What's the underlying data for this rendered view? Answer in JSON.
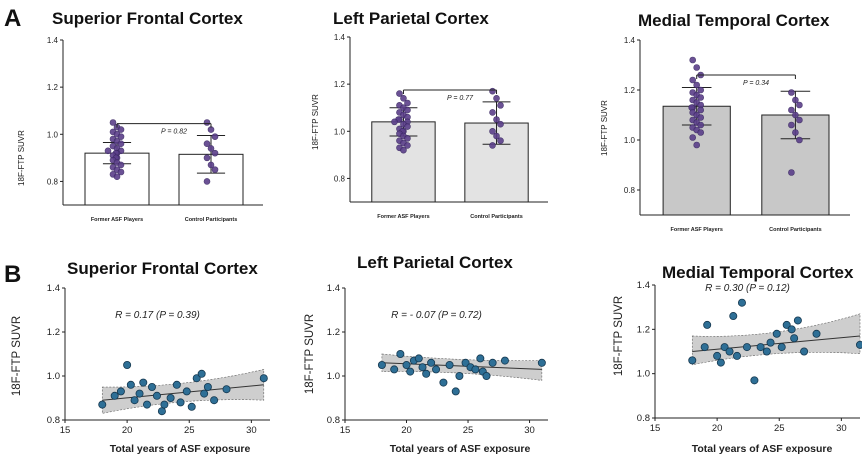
{
  "panel_labels": {
    "a": "A",
    "b": "B"
  },
  "chart_data": [
    {
      "type": "bar",
      "panel": "A",
      "title": "Superior Frontal Cortex",
      "ylabel": "18F-FTP SUVR",
      "ylim": [
        0.7,
        1.4
      ],
      "yticks": [
        "0.8",
        "1.0",
        "1.2",
        "1.4"
      ],
      "categories": [
        "Former ASF Players",
        "Control Participants"
      ],
      "values": [
        0.92,
        0.915
      ],
      "sd": [
        0.045,
        0.08
      ],
      "fill": [
        "#ffffff",
        "#ffffff"
      ],
      "annotation": "P = 0.82",
      "points": [
        [
          1.05,
          1.03,
          1.02,
          1.01,
          1.0,
          0.99,
          0.98,
          0.97,
          0.96,
          0.95,
          0.94,
          0.93,
          0.93,
          0.92,
          0.92,
          0.91,
          0.9,
          0.9,
          0.89,
          0.88,
          0.87,
          0.86,
          0.85,
          0.84,
          0.83,
          0.82
        ],
        [
          1.05,
          1.02,
          0.99,
          0.96,
          0.94,
          0.92,
          0.9,
          0.87,
          0.85,
          0.8
        ]
      ]
    },
    {
      "type": "bar",
      "panel": "A",
      "title": "Left Parietal Cortex",
      "ylabel": "18F-FTP SUVR",
      "ylim": [
        0.7,
        1.4
      ],
      "yticks": [
        "0.8",
        "1.0",
        "1.2",
        "1.4"
      ],
      "categories": [
        "Former ASF Players",
        "Control Participants"
      ],
      "values": [
        1.04,
        1.035
      ],
      "sd": [
        0.06,
        0.09
      ],
      "fill": [
        "#e3e3e3",
        "#e3e3e3"
      ],
      "annotation": "P = 0.77",
      "points": [
        [
          1.16,
          1.14,
          1.12,
          1.11,
          1.1,
          1.09,
          1.08,
          1.07,
          1.06,
          1.05,
          1.05,
          1.04,
          1.04,
          1.03,
          1.02,
          1.01,
          1.0,
          1.0,
          0.99,
          0.98,
          0.97,
          0.96,
          0.95,
          0.94,
          0.93,
          0.92
        ],
        [
          1.17,
          1.14,
          1.11,
          1.08,
          1.05,
          1.03,
          1.0,
          0.98,
          0.96,
          0.94
        ]
      ]
    },
    {
      "type": "bar",
      "panel": "A",
      "title": "Medial Temporal Cortex",
      "ylabel": "18F-FTP SUVR",
      "ylim": [
        0.7,
        1.4
      ],
      "yticks": [
        "0.8",
        "1.0",
        "1.2",
        "1.4"
      ],
      "categories": [
        "Former ASF Players",
        "Control Participants"
      ],
      "values": [
        1.135,
        1.1
      ],
      "sd": [
        0.075,
        0.095
      ],
      "fill": [
        "#c8c8c8",
        "#c8c8c8"
      ],
      "annotation": "P = 0.34",
      "points": [
        [
          1.32,
          1.29,
          1.26,
          1.24,
          1.22,
          1.2,
          1.19,
          1.18,
          1.17,
          1.16,
          1.15,
          1.14,
          1.13,
          1.13,
          1.12,
          1.11,
          1.1,
          1.09,
          1.08,
          1.07,
          1.06,
          1.05,
          1.04,
          1.03,
          1.01,
          0.98
        ],
        [
          1.19,
          1.16,
          1.14,
          1.12,
          1.1,
          1.08,
          1.06,
          1.03,
          1.0,
          0.87
        ]
      ]
    },
    {
      "type": "scatter",
      "panel": "B",
      "title": "Superior Frontal Cortex",
      "xlabel": "Total years of ASF exposure",
      "ylabel": "18F-FTP SUVR",
      "xlim": [
        15,
        31.5
      ],
      "ylim": [
        0.8,
        1.4
      ],
      "xticks": [
        "15",
        "20",
        "25",
        "30"
      ],
      "yticks": [
        "0.8",
        "1.0",
        "1.2",
        "1.4"
      ],
      "annotation": "R = 0.17 (P = 0.39)",
      "fit": {
        "x": [
          18,
          31
        ],
        "y": [
          0.89,
          0.96
        ]
      },
      "band": {
        "upper": [
          0.95,
          1.03
        ],
        "lower": [
          0.83,
          0.89
        ]
      },
      "points": [
        [
          18,
          0.87
        ],
        [
          19,
          0.91
        ],
        [
          19.5,
          0.93
        ],
        [
          20,
          1.05
        ],
        [
          20.3,
          0.96
        ],
        [
          20.6,
          0.89
        ],
        [
          21,
          0.92
        ],
        [
          21.3,
          0.97
        ],
        [
          21.6,
          0.87
        ],
        [
          22,
          0.95
        ],
        [
          22.4,
          0.91
        ],
        [
          22.8,
          0.84
        ],
        [
          23,
          0.87
        ],
        [
          23.5,
          0.9
        ],
        [
          24,
          0.96
        ],
        [
          24.3,
          0.88
        ],
        [
          24.8,
          0.93
        ],
        [
          25.2,
          0.86
        ],
        [
          25.6,
          0.99
        ],
        [
          26,
          1.01
        ],
        [
          26.2,
          0.92
        ],
        [
          26.5,
          0.95
        ],
        [
          27,
          0.89
        ],
        [
          28,
          0.94
        ],
        [
          31,
          0.99
        ]
      ]
    },
    {
      "type": "scatter",
      "panel": "B",
      "title": "Left Parietal Cortex",
      "xlabel": "Total years of ASF exposure",
      "ylabel": "18F-FTP SUVR",
      "xlim": [
        15,
        31.5
      ],
      "ylim": [
        0.8,
        1.4
      ],
      "xticks": [
        "15",
        "20",
        "25",
        "30"
      ],
      "yticks": [
        "0.8",
        "1.0",
        "1.2",
        "1.4"
      ],
      "annotation": "R = - 0.07 (P = 0.72)",
      "fit": {
        "x": [
          18,
          31
        ],
        "y": [
          1.06,
          1.03
        ]
      },
      "band": {
        "upper": [
          1.1,
          1.07
        ],
        "lower": [
          1.02,
          0.98
        ]
      },
      "points": [
        [
          18,
          1.05
        ],
        [
          19,
          1.03
        ],
        [
          19.5,
          1.1
        ],
        [
          20,
          1.05
        ],
        [
          20.3,
          1.02
        ],
        [
          20.6,
          1.07
        ],
        [
          21,
          1.08
        ],
        [
          21.3,
          1.04
        ],
        [
          21.6,
          1.01
        ],
        [
          22,
          1.06
        ],
        [
          22.4,
          1.03
        ],
        [
          23,
          0.97
        ],
        [
          23.5,
          1.05
        ],
        [
          24,
          0.93
        ],
        [
          24.3,
          1.0
        ],
        [
          24.8,
          1.06
        ],
        [
          25.2,
          1.04
        ],
        [
          25.6,
          1.03
        ],
        [
          26,
          1.08
        ],
        [
          26.2,
          1.02
        ],
        [
          26.5,
          1.0
        ],
        [
          27,
          1.06
        ],
        [
          28,
          1.07
        ],
        [
          31,
          1.06
        ]
      ]
    },
    {
      "type": "scatter",
      "panel": "B",
      "title": "Medial Temporal Cortex",
      "xlabel": "Total years of ASF exposure",
      "ylabel": "18F-FTP SUVR",
      "xlim": [
        15,
        31.5
      ],
      "ylim": [
        0.8,
        1.4
      ],
      "xticks": [
        "15",
        "20",
        "25",
        "30"
      ],
      "yticks": [
        "0.8",
        "1.0",
        "1.2",
        "1.4"
      ],
      "annotation": "R = 0.30 (P = 0.12)",
      "fit": {
        "x": [
          18,
          31.5
        ],
        "y": [
          1.1,
          1.17
        ]
      },
      "band": {
        "upper": [
          1.17,
          1.27
        ],
        "lower": [
          1.04,
          1.09
        ]
      },
      "points": [
        [
          18,
          1.06
        ],
        [
          19,
          1.12
        ],
        [
          19.2,
          1.22
        ],
        [
          20,
          1.08
        ],
        [
          20.3,
          1.05
        ],
        [
          20.6,
          1.12
        ],
        [
          21,
          1.1
        ],
        [
          21.3,
          1.26
        ],
        [
          21.6,
          1.08
        ],
        [
          22,
          1.32
        ],
        [
          22.4,
          1.12
        ],
        [
          23,
          0.97
        ],
        [
          23.5,
          1.12
        ],
        [
          24,
          1.1
        ],
        [
          24.3,
          1.14
        ],
        [
          24.8,
          1.18
        ],
        [
          25.2,
          1.12
        ],
        [
          25.6,
          1.22
        ],
        [
          26,
          1.2
        ],
        [
          26.2,
          1.16
        ],
        [
          26.5,
          1.24
        ],
        [
          27,
          1.1
        ],
        [
          28,
          1.18
        ],
        [
          31.5,
          1.13
        ]
      ]
    }
  ]
}
